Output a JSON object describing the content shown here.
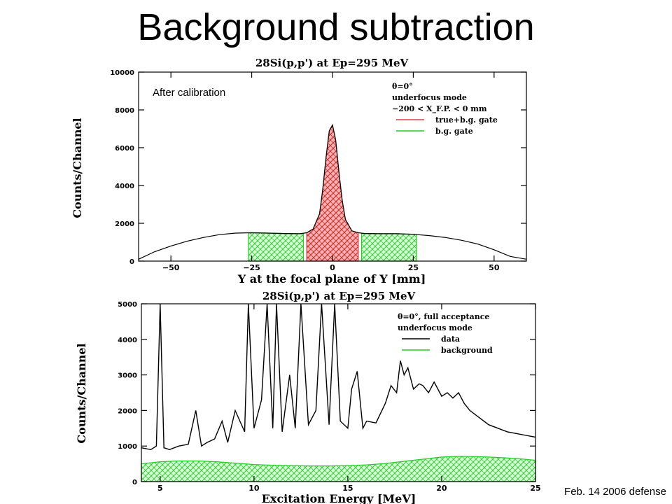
{
  "slide": {
    "title": "Background subtraction",
    "footer": "Feb. 14 2006 defense"
  },
  "colors": {
    "signal": "#e04040",
    "background": "#22cc22",
    "line": "#000000"
  },
  "chart_data": [
    {
      "type": "line",
      "title": "28Si(p,p') at Ep=295 MeV",
      "xlabel": "Y at the focal plane of Y [mm]",
      "ylabel": "Counts/Channel",
      "annotation": "After calibration",
      "xlim": [
        -60,
        60
      ],
      "ylim": [
        0,
        10000
      ],
      "xticks": [
        -50,
        -25,
        0,
        25,
        50
      ],
      "yticks": [
        0,
        2000,
        4000,
        6000,
        8000,
        10000
      ],
      "legend": {
        "position": "top-right",
        "lines": [
          "θ=0°",
          "underfocus mode",
          "−200 < X_F.P. < 0 mm"
        ],
        "entries": [
          {
            "name": "true+b.g. gate",
            "color": "#e04040"
          },
          {
            "name": "b.g. gate",
            "color": "#22cc22"
          }
        ]
      },
      "x": [
        -60,
        -55,
        -50,
        -45,
        -40,
        -35,
        -30,
        -25,
        -20,
        -15,
        -10,
        -8,
        -6,
        -4,
        -3,
        -2,
        -1,
        0,
        1,
        2,
        3,
        4,
        6,
        8,
        10,
        15,
        20,
        25,
        30,
        35,
        40,
        45,
        50,
        55,
        60
      ],
      "y": [
        100,
        500,
        800,
        1050,
        1250,
        1400,
        1480,
        1500,
        1480,
        1460,
        1450,
        1500,
        1700,
        2500,
        3800,
        5500,
        6900,
        7200,
        6400,
        4700,
        3200,
        2200,
        1600,
        1500,
        1460,
        1450,
        1450,
        1420,
        1350,
        1250,
        1100,
        900,
        600,
        250,
        100
      ],
      "gates": [
        {
          "label": "b.g. gate",
          "range": [
            -26,
            -9
          ],
          "color": "#22cc22"
        },
        {
          "label": "true+b.g. gate",
          "range": [
            -8,
            8
          ],
          "color": "#e04040"
        },
        {
          "label": "b.g. gate",
          "range": [
            9,
            26
          ],
          "color": "#22cc22"
        }
      ]
    },
    {
      "type": "line",
      "title": "28Si(p,p') at Ep=295 MeV",
      "xlabel": "Excitation Energy [MeV]",
      "ylabel": "Counts/Channel",
      "xlim": [
        4,
        25
      ],
      "ylim": [
        0,
        5000
      ],
      "xticks": [
        5,
        10,
        15,
        20,
        25
      ],
      "yticks": [
        0,
        1000,
        2000,
        3000,
        4000,
        5000
      ],
      "legend": {
        "position": "top-right",
        "lines": [
          "θ=0°, full acceptance",
          "underfocus mode"
        ],
        "entries": [
          {
            "name": "data",
            "color": "#000000"
          },
          {
            "name": "background",
            "color": "#22cc22"
          }
        ]
      },
      "series": [
        {
          "name": "data",
          "x": [
            4.0,
            4.5,
            4.8,
            5.0,
            5.2,
            5.5,
            6.0,
            6.5,
            6.9,
            7.2,
            7.5,
            7.9,
            8.3,
            8.6,
            9.0,
            9.5,
            9.7,
            10.0,
            10.4,
            10.7,
            11.0,
            11.2,
            11.5,
            11.9,
            12.2,
            12.5,
            12.9,
            13.3,
            13.6,
            14.0,
            14.3,
            14.6,
            15.0,
            15.2,
            15.5,
            15.8,
            16.0,
            16.5,
            17.0,
            17.3,
            17.6,
            17.8,
            18.0,
            18.2,
            18.5,
            18.8,
            19.0,
            19.3,
            19.6,
            20.0,
            20.3,
            20.6,
            20.9,
            21.2,
            21.5,
            22.0,
            22.5,
            23.0,
            23.5,
            24.0,
            24.5,
            25.0
          ],
          "y": [
            950,
            900,
            1000,
            5000,
            950,
            900,
            1000,
            1050,
            2000,
            1000,
            1100,
            1200,
            1700,
            1100,
            2000,
            1400,
            5000,
            1500,
            2300,
            5000,
            1500,
            5000,
            1400,
            3000,
            1500,
            5000,
            1600,
            2000,
            5000,
            1600,
            5000,
            1700,
            1500,
            2600,
            3100,
            1500,
            1700,
            1650,
            2200,
            2700,
            2500,
            3400,
            3000,
            3200,
            2600,
            2750,
            2700,
            2500,
            2800,
            2400,
            2500,
            2350,
            2500,
            2200,
            2000,
            1800,
            1600,
            1500,
            1400,
            1350,
            1300,
            1250
          ]
        },
        {
          "name": "background",
          "x": [
            4,
            5,
            6,
            7,
            8,
            9,
            10,
            11,
            12,
            13,
            14,
            15,
            16,
            17,
            18,
            19,
            20,
            21,
            22,
            23,
            24,
            25
          ],
          "y": [
            500,
            560,
            580,
            580,
            560,
            520,
            480,
            460,
            450,
            440,
            440,
            450,
            470,
            510,
            570,
            630,
            690,
            710,
            700,
            680,
            650,
            600
          ]
        }
      ]
    }
  ]
}
